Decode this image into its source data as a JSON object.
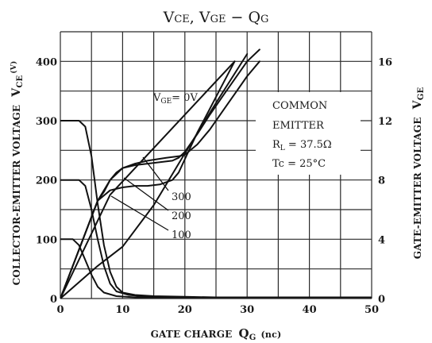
{
  "chart_data": {
    "type": "line",
    "title": {
      "v1": "V",
      "s1": "CE",
      "comma": ", ",
      "v2": "V",
      "s2": "GE",
      "dash": " − ",
      "q": "Q",
      "qs": "G"
    },
    "xlabel": {
      "main": "GATE CHARGE",
      "q": "Q",
      "qs": "G",
      "unit": "(nc)"
    },
    "ylabel_left": {
      "main": "COLLECTOR-EMITTER VOLTAGE",
      "v": "V",
      "vs": "CE",
      "unit": "(V)"
    },
    "ylabel_right": {
      "main": "GATE-EMITTER VOLTAGE",
      "v": "V",
      "vs": "GE"
    },
    "xlim": [
      0,
      50
    ],
    "ylim_left": [
      0,
      450
    ],
    "ylim_right": [
      0,
      18
    ],
    "x_ticks": [
      "0",
      "10",
      "20",
      "30",
      "40",
      "50"
    ],
    "y_left_ticks": [
      "0",
      "100",
      "200",
      "300",
      "400"
    ],
    "y_right_ticks": [
      "0",
      "4",
      "8",
      "12",
      "16"
    ],
    "grid": true,
    "annotations": {
      "vge0_v": "V",
      "vge0_s": "GE",
      "vge0_rest": "= 0V",
      "common": "COMMON",
      "emitter": "EMITTER",
      "rl_v": "R",
      "rl_s": "L",
      "rl_rest": " = 37.5Ω",
      "tc": "Tc = 25°C",
      "lbl300": "300",
      "lbl200": "200",
      "lbl100": "100"
    },
    "series": [
      {
        "axis": "left",
        "x": [
          0,
          3,
          4,
          5,
          6,
          7,
          8,
          9,
          10,
          12,
          15,
          20,
          25,
          30,
          40,
          50
        ],
        "y": [
          300,
          300,
          290,
          240,
          160,
          90,
          45,
          20,
          10,
          6,
          4,
          3,
          2,
          2,
          2,
          2
        ]
      },
      {
        "axis": "left",
        "x": [
          0,
          3,
          4,
          5,
          6,
          7,
          8,
          9,
          11,
          14,
          20,
          30,
          50
        ],
        "y": [
          200,
          200,
          190,
          150,
          100,
          55,
          25,
          12,
          6,
          3,
          2,
          2,
          2
        ]
      },
      {
        "axis": "left",
        "x": [
          0,
          2,
          3,
          4,
          5,
          6,
          7,
          9,
          12,
          20,
          50
        ],
        "y": [
          100,
          100,
          90,
          65,
          40,
          20,
          10,
          4,
          2,
          2,
          2
        ]
      },
      {
        "axis": "right",
        "x": [
          0,
          8,
          28
        ],
        "y": [
          0,
          7.0,
          16
        ]
      },
      {
        "axis": "right",
        "x": [
          0,
          6,
          7,
          8,
          9,
          10,
          12,
          14,
          17,
          19,
          20,
          22,
          24,
          26,
          28,
          30,
          32
        ],
        "y": [
          0,
          6.6,
          7.2,
          8.0,
          8.5,
          8.8,
          9.1,
          9.3,
          9.5,
          9.6,
          9.7,
          10.4,
          11.4,
          12.6,
          13.8,
          15.0,
          16.0
        ]
      },
      {
        "axis": "right",
        "x": [
          0,
          6,
          8,
          10,
          12,
          14,
          16,
          18,
          19,
          20,
          22,
          24,
          26,
          28,
          30,
          32
        ],
        "y": [
          0,
          6.6,
          8.0,
          8.8,
          9.0,
          9.1,
          9.2,
          9.3,
          9.5,
          9.9,
          11.1,
          12.4,
          13.6,
          14.8,
          16.0,
          16.8
        ]
      },
      {
        "axis": "right",
        "x": [
          0,
          6,
          8,
          10,
          12,
          14,
          16,
          18,
          19,
          20,
          22,
          24,
          26,
          28
        ],
        "y": [
          0,
          6.6,
          7.3,
          7.5,
          7.6,
          7.6,
          7.7,
          8.0,
          8.5,
          9.4,
          11.2,
          12.8,
          14.4,
          16.0
        ]
      },
      {
        "axis": "right",
        "x": [
          0,
          6,
          10,
          15,
          20,
          25,
          30
        ],
        "y": [
          0,
          2.2,
          3.5,
          6.3,
          9.8,
          13.2,
          16.5
        ]
      }
    ]
  }
}
